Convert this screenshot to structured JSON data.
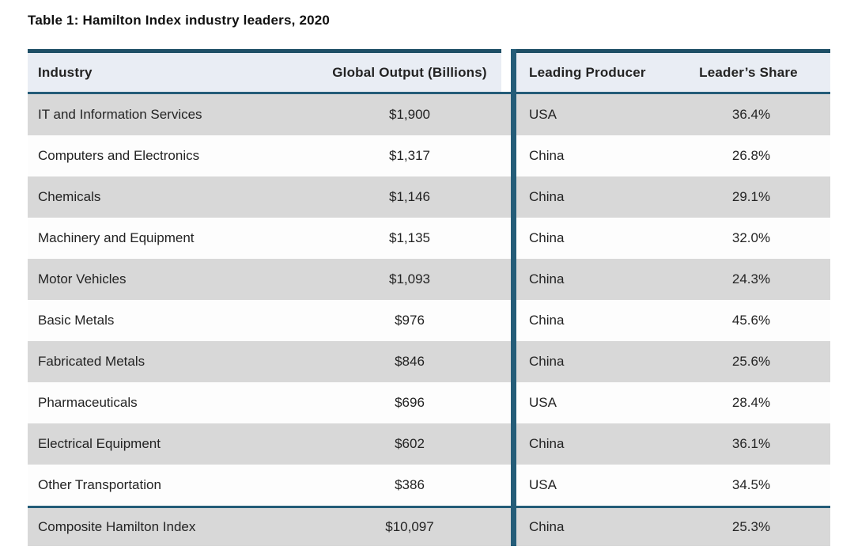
{
  "title": "Table 1: Hamilton Index industry leaders, 2020",
  "table": {
    "columns": [
      "Industry",
      "Global Output (Billions)",
      "Leading Producer",
      "Leader’s Share"
    ],
    "rows": [
      {
        "industry": "IT and Information Services",
        "output": "$1,900",
        "producer": "USA",
        "share": "36.4%"
      },
      {
        "industry": "Computers and Electronics",
        "output": "$1,317",
        "producer": "China",
        "share": "26.8%"
      },
      {
        "industry": "Chemicals",
        "output": "$1,146",
        "producer": "China",
        "share": "29.1%"
      },
      {
        "industry": "Machinery and Equipment",
        "output": "$1,135",
        "producer": "China",
        "share": "32.0%"
      },
      {
        "industry": "Motor Vehicles",
        "output": "$1,093",
        "producer": "China",
        "share": "24.3%"
      },
      {
        "industry": "Basic Metals",
        "output": "$976",
        "producer": "China",
        "share": "45.6%"
      },
      {
        "industry": "Fabricated Metals",
        "output": "$846",
        "producer": "China",
        "share": "25.6%"
      },
      {
        "industry": "Pharmaceuticals",
        "output": "$696",
        "producer": "USA",
        "share": "28.4%"
      },
      {
        "industry": "Electrical Equipment",
        "output": "$602",
        "producer": "China",
        "share": "36.1%"
      },
      {
        "industry": "Other Transportation",
        "output": "$386",
        "producer": "USA",
        "share": "34.5%"
      }
    ],
    "footer_row": {
      "industry": "Composite Hamilton Index",
      "output": "$10,097",
      "producer": "China",
      "share": "25.3%"
    }
  },
  "colors": {
    "top_border": "#1e4f66",
    "rule_lines": "#245c78",
    "header_bg": "#e9edf4",
    "header_text": "#2b6384",
    "row_gray": "#d8d8d8",
    "row_white": "#fdfdfd",
    "body_text": "#232323"
  },
  "chart_data": {
    "type": "table",
    "title": "Table 1: Hamilton Index industry leaders, 2020",
    "columns": [
      "Industry",
      "Global Output (Billions)",
      "Leading Producer",
      "Leader's Share"
    ],
    "rows": [
      [
        "IT and Information Services",
        1900,
        "USA",
        36.4
      ],
      [
        "Computers and Electronics",
        1317,
        "China",
        26.8
      ],
      [
        "Chemicals",
        1146,
        "China",
        29.1
      ],
      [
        "Machinery and Equipment",
        1135,
        "China",
        32.0
      ],
      [
        "Motor Vehicles",
        1093,
        "China",
        24.3
      ],
      [
        "Basic Metals",
        976,
        "China",
        45.6
      ],
      [
        "Fabricated Metals",
        846,
        "China",
        25.6
      ],
      [
        "Pharmaceuticals",
        696,
        "USA",
        28.4
      ],
      [
        "Electrical Equipment",
        602,
        "China",
        36.1
      ],
      [
        "Other Transportation",
        386,
        "USA",
        34.5
      ],
      [
        "Composite Hamilton Index",
        10097,
        "China",
        25.3
      ]
    ],
    "units": {
      "global_output": "USD billions",
      "leaders_share": "percent"
    }
  }
}
